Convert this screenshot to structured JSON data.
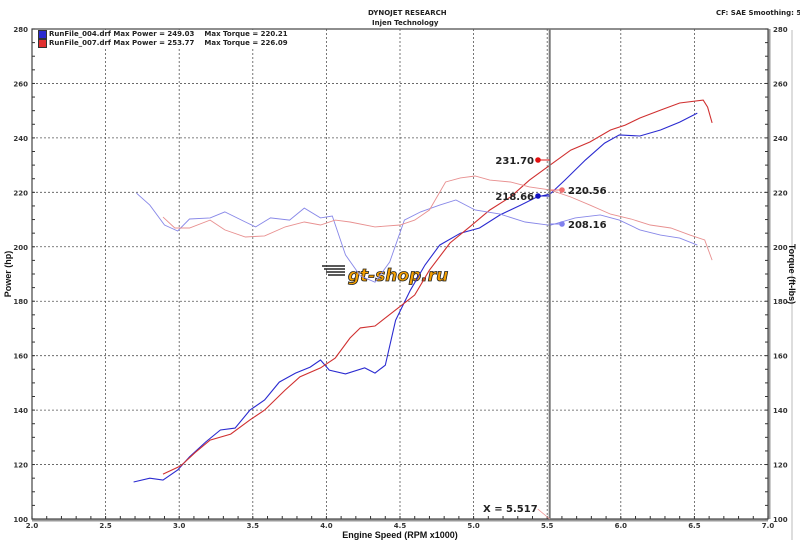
{
  "header": {
    "title": "DYNOJET RESEARCH",
    "subtitle": "Injen Technology",
    "settings": "CF: SAE  Smoothing: 5"
  },
  "legend": [
    {
      "file": "RunFile_004.drf",
      "power": "Max Power = 249.03",
      "torque": "Max Torque = 220.21",
      "color": "#2a2ad0"
    },
    {
      "file": "RunFile_007.drf",
      "power": "Max Power = 253.77",
      "torque": "Max Torque = 226.09",
      "color": "#e03030"
    }
  ],
  "watermark": "gt-shop.ru",
  "cursor": {
    "label": "X = 5.517",
    "x": 5.517
  },
  "markers": [
    {
      "label": "231.70",
      "color": "#e01010",
      "series": "RunFile_007.drf power"
    },
    {
      "label": "218.66",
      "color": "#1010c0",
      "series": "RunFile_004.drf power"
    },
    {
      "label": "220.56",
      "color": "#f07070",
      "series": "RunFile_007.drf torque"
    },
    {
      "label": "208.16",
      "color": "#8080ee",
      "series": "RunFile_004.drf torque"
    }
  ],
  "chart_data": {
    "type": "line",
    "xlabel": "Engine Speed (RPM x1000)",
    "ylabel": "Power (hp)",
    "y2label": "Torque (ft-lbs)",
    "xlim": [
      2.0,
      7.0
    ],
    "ylim": [
      100,
      280
    ],
    "y2lim": [
      100,
      280
    ],
    "grid": true,
    "xticks": [
      "2.0",
      "2.5",
      "3.0",
      "3.5",
      "4.0",
      "4.5",
      "5.0",
      "5.5",
      "6.0",
      "6.5",
      "7.0"
    ],
    "yticks": [
      "100",
      "120",
      "140",
      "160",
      "180",
      "200",
      "220",
      "240",
      "260",
      "280"
    ],
    "series": [
      {
        "name": "RunFile_004.drf",
        "quantity": "power",
        "axis": "left",
        "color": "#2a2ad0",
        "x": [
          2.69,
          2.8,
          2.89,
          2.99,
          3.07,
          3.18,
          3.28,
          3.38,
          3.48,
          3.58,
          3.68,
          3.79,
          3.89,
          3.96,
          4.02,
          4.13,
          4.26,
          4.33,
          4.4,
          4.47,
          4.57,
          4.67,
          4.77,
          4.91,
          5.04,
          5.18,
          5.32,
          5.43,
          5.52,
          5.62,
          5.76,
          5.89,
          5.99,
          6.13,
          6.27,
          6.4,
          6.52
        ],
        "y": [
          113.6,
          115,
          114.3,
          118,
          122.8,
          128.3,
          132.7,
          133.4,
          140,
          143.7,
          150.3,
          153.6,
          155.8,
          158.4,
          154.7,
          153.3,
          155.5,
          153.6,
          156.5,
          173,
          184,
          193.3,
          200.6,
          205,
          206.9,
          211.7,
          215.3,
          218.3,
          219.4,
          224.5,
          231.9,
          238.1,
          241.1,
          240.7,
          242.9,
          245.8,
          249.1
        ]
      },
      {
        "name": "RunFile_007.drf",
        "quantity": "power",
        "axis": "left",
        "color": "#d03030",
        "x": [
          2.89,
          3.01,
          3.11,
          3.21,
          3.35,
          3.48,
          3.58,
          3.72,
          3.82,
          3.96,
          4.06,
          4.16,
          4.23,
          4.33,
          4.47,
          4.6,
          4.7,
          4.84,
          4.98,
          5.11,
          5.25,
          5.38,
          5.52,
          5.66,
          5.79,
          5.93,
          6.03,
          6.13,
          6.27,
          6.4,
          6.56,
          6.59,
          6.62
        ],
        "y": [
          116.5,
          119.5,
          124.5,
          129,
          131.2,
          136.4,
          140,
          147.4,
          152.2,
          155.5,
          159.1,
          166.5,
          170.2,
          170.9,
          176.8,
          182.3,
          191.4,
          201.4,
          207.6,
          213.5,
          218.3,
          224.5,
          230,
          235.5,
          238.5,
          242.9,
          244.7,
          247.3,
          250.2,
          252.8,
          253.9,
          251.3,
          245.5
        ]
      },
      {
        "name": "RunFile_004.drf",
        "quantity": "torque",
        "axis": "right",
        "color": "#8888e8",
        "x": [
          2.71,
          2.8,
          2.9,
          2.99,
          3.07,
          3.21,
          3.31,
          3.45,
          3.52,
          3.62,
          3.75,
          3.85,
          3.96,
          4.04,
          4.13,
          4.23,
          4.33,
          4.43,
          4.53,
          4.64,
          4.77,
          4.88,
          5.01,
          5.18,
          5.35,
          5.52,
          5.69,
          5.86,
          5.99,
          6.13,
          6.27,
          6.4,
          6.52
        ],
        "y": [
          219.7,
          215.3,
          208,
          205.8,
          210.2,
          210.6,
          212.8,
          209.1,
          207.3,
          210.6,
          209.8,
          214.2,
          210.6,
          211.3,
          197,
          189.3,
          187,
          194.4,
          209.8,
          212.8,
          215.3,
          217.2,
          213.5,
          212,
          209.1,
          207.9,
          210.6,
          211.7,
          209.8,
          206.2,
          204.3,
          203.2,
          200.6
        ]
      },
      {
        "name": "RunFile_007.drf",
        "quantity": "torque",
        "axis": "right",
        "color": "#e89090",
        "x": [
          2.89,
          2.97,
          3.07,
          3.21,
          3.31,
          3.45,
          3.58,
          3.72,
          3.85,
          3.96,
          4.06,
          4.16,
          4.33,
          4.5,
          4.6,
          4.7,
          4.81,
          4.91,
          5.01,
          5.11,
          5.25,
          5.38,
          5.52,
          5.66,
          5.79,
          5.93,
          6.07,
          6.2,
          6.34,
          6.47,
          6.57,
          6.62
        ],
        "y": [
          210.9,
          206.9,
          206.9,
          209.8,
          206.2,
          203.6,
          204,
          207.3,
          209.1,
          208,
          209.8,
          209.1,
          207.3,
          208,
          209.8,
          213.5,
          223.8,
          225.3,
          226,
          224.5,
          223.8,
          222,
          220.9,
          218.3,
          215.3,
          212,
          210.2,
          208,
          206.9,
          204.3,
          202.5,
          195.1
        ]
      }
    ]
  }
}
